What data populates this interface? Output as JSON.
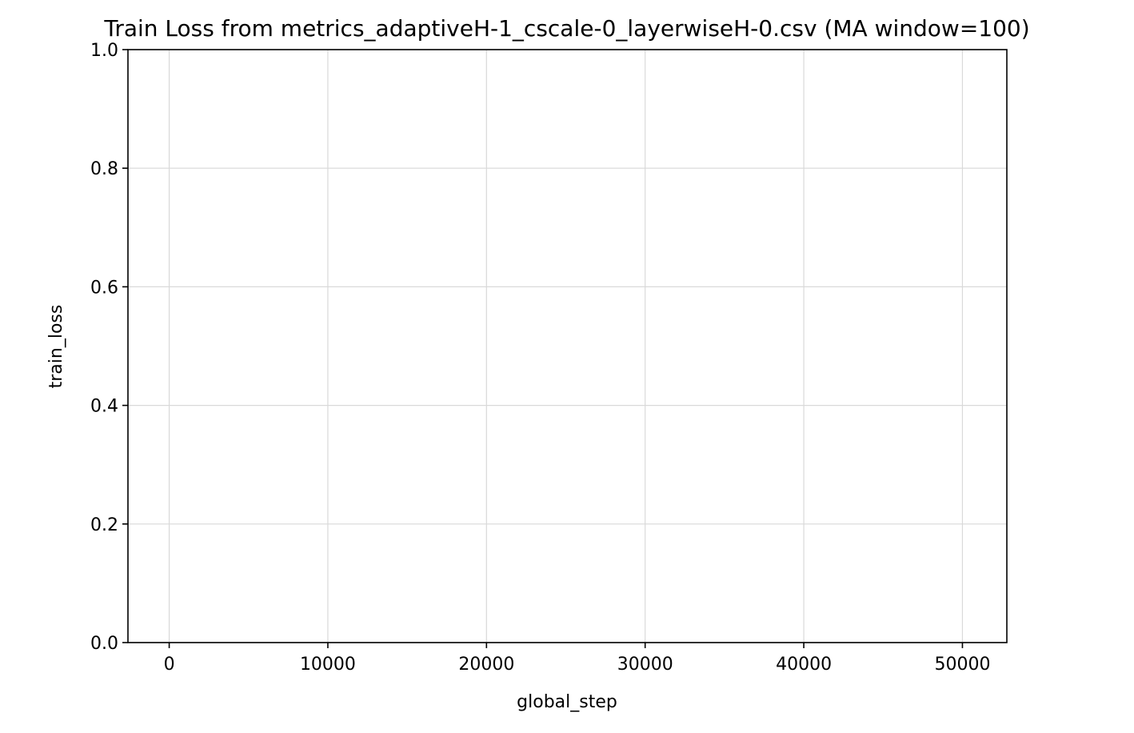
{
  "chart_data": {
    "type": "line",
    "title": "Train Loss from metrics_adaptiveH-1_cscale-0_layerwiseH-0.csv (MA window=100)",
    "xlabel": "global_step",
    "ylabel": "train_loss",
    "xlim": [
      -2600,
      52800
    ],
    "ylim": [
      0.0,
      1.0
    ],
    "x_ticks": [
      0,
      10000,
      20000,
      30000,
      40000,
      50000
    ],
    "x_tick_labels": [
      "0",
      "10000",
      "20000",
      "30000",
      "40000",
      "50000"
    ],
    "y_ticks": [
      0.0,
      0.2,
      0.4,
      0.6,
      0.8,
      1.0
    ],
    "y_tick_labels": [
      "0.0",
      "0.2",
      "0.4",
      "0.6",
      "0.8",
      "1.0"
    ],
    "grid": true,
    "series": [],
    "colors": {
      "axis": "#000000",
      "grid": "#d9d9d9",
      "background": "#ffffff"
    }
  }
}
